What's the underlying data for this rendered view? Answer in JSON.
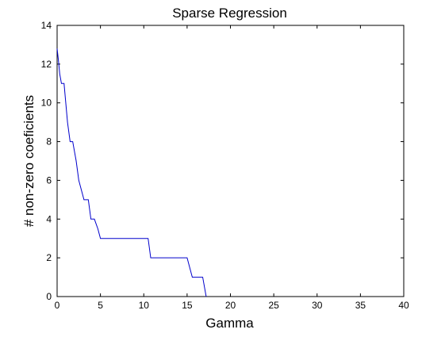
{
  "chart_data": {
    "type": "line",
    "title": "Sparse Regression",
    "xlabel": "Gamma",
    "ylabel": "# non-zero coeficients",
    "xlim": [
      0,
      40
    ],
    "ylim": [
      0,
      14
    ],
    "xticks": [
      0,
      5,
      10,
      15,
      20,
      25,
      30,
      35,
      40
    ],
    "yticks": [
      0,
      2,
      4,
      6,
      8,
      10,
      12,
      14
    ],
    "grid": false,
    "line_color": "#0000cc",
    "series": [
      {
        "x": [
          0,
          0.15,
          0.3,
          0.5,
          0.8,
          1.0,
          1.2,
          1.5,
          1.8,
          2.2,
          2.5,
          2.8,
          3.1,
          3.4,
          3.6,
          3.9,
          4.3,
          4.7,
          5.0,
          5.4,
          10.5,
          10.8,
          11.2,
          15.0,
          15.3,
          15.6,
          16.8,
          17.2
        ],
        "y": [
          12.8,
          12.2,
          11.5,
          11.0,
          11.0,
          10.0,
          9.0,
          8.0,
          8.0,
          7.0,
          6.0,
          5.5,
          5.0,
          5.0,
          5.0,
          4.0,
          4.0,
          3.5,
          3.0,
          3.0,
          3.0,
          2.0,
          2.0,
          2.0,
          1.5,
          1.0,
          1.0,
          0.0
        ]
      }
    ]
  }
}
